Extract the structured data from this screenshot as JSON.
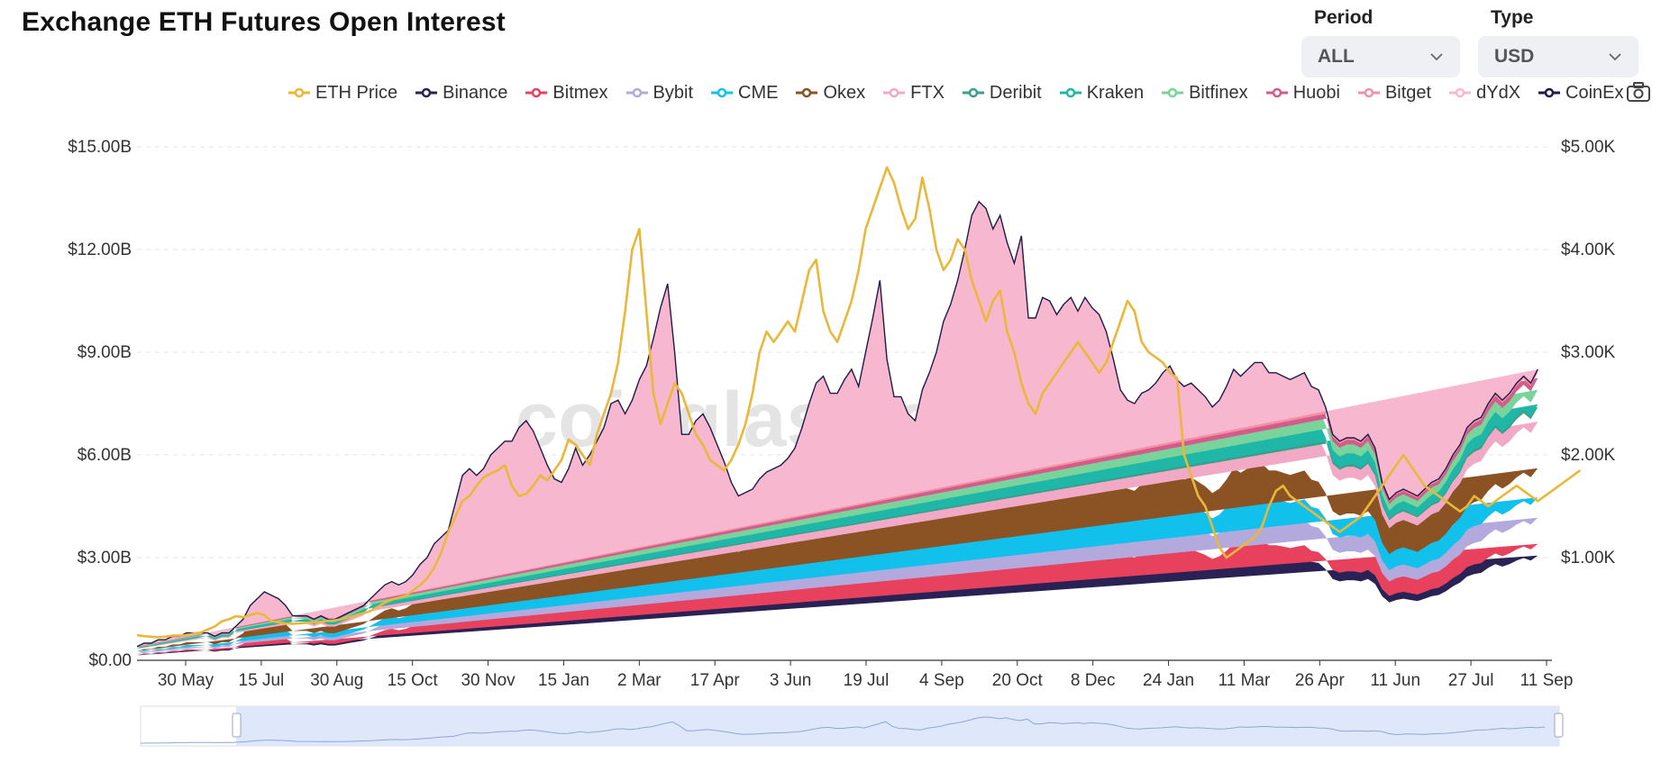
{
  "title": "Exchange ETH Futures Open Interest",
  "controls": {
    "period": {
      "label": "Period",
      "value": "ALL"
    },
    "type": {
      "label": "Type",
      "value": "USD"
    }
  },
  "watermark": "coinglass.com",
  "colors": {
    "eth_price": "#e9b83b",
    "binance": "#2a2254",
    "bitmex": "#e8415e",
    "bybit": "#b4a9dd",
    "cme": "#12c0ec",
    "okex": "#8b5324",
    "ftx": "#f1a9c5",
    "deribit": "#3c9e8c",
    "kraken": "#1fb8a8",
    "bitfinex": "#78d49a",
    "huobi": "#d45c8a",
    "bitget": "#f390a6",
    "dydx": "#f7b8cf",
    "coinex": "#1d1a4a"
  },
  "chart_data": {
    "type": "area",
    "stacked": true,
    "y_left": {
      "ticks": [
        "$0.00",
        "$3.00B",
        "$6.00B",
        "$9.00B",
        "$12.00B",
        "$15.00B"
      ],
      "range": [
        0,
        15
      ]
    },
    "y_right": {
      "ticks": [
        "$1.00K",
        "$2.00K",
        "$3.00K",
        "$4.00K",
        "$5.00K"
      ],
      "range": [
        0,
        5000
      ]
    },
    "x_ticks": [
      "30 May",
      "15 Jul",
      "30 Aug",
      "15 Oct",
      "30 Nov",
      "15 Jan",
      "2 Mar",
      "17 Apr",
      "3 Jun",
      "19 Jul",
      "4 Sep",
      "20 Oct",
      "8 Dec",
      "24 Jan",
      "11 Mar",
      "26 Apr",
      "11 Jun",
      "27 Jul",
      "11 Sep"
    ],
    "grid": true,
    "legend_position": "top-right",
    "legend": [
      "ETH Price",
      "Binance",
      "Bitmex",
      "Bybit",
      "CME",
      "Okex",
      "FTX",
      "Deribit",
      "Kraken",
      "Bitfinex",
      "Huobi",
      "Bitget",
      "dYdX",
      "CoinEx"
    ],
    "x": [
      0,
      1,
      2,
      3,
      4,
      5,
      6,
      7,
      8,
      9,
      10,
      11,
      12,
      13,
      14,
      15,
      16,
      17,
      18,
      19,
      20,
      21,
      22,
      23,
      24,
      25,
      26,
      27,
      28,
      29,
      30,
      31,
      32,
      33,
      34,
      35,
      36,
      37,
      38,
      39,
      40,
      41,
      42,
      43,
      44,
      45,
      46,
      47,
      48,
      49,
      50,
      51,
      52,
      53,
      54,
      55,
      56,
      57,
      58,
      59,
      60,
      61,
      62,
      63,
      64,
      65,
      66,
      67,
      68,
      69,
      70,
      71,
      72,
      73,
      74,
      75,
      76,
      77,
      78,
      79,
      80,
      81,
      82,
      83,
      84,
      85,
      86,
      87,
      88,
      89,
      90,
      91,
      92,
      93,
      94,
      95,
      96,
      97,
      98,
      99,
      100,
      101,
      102,
      103,
      104,
      105,
      106,
      107,
      108,
      109,
      110,
      111,
      112,
      113,
      114,
      115,
      116,
      117,
      118,
      119,
      120,
      121,
      122,
      123,
      124,
      125,
      126,
      127,
      128,
      129,
      130,
      131,
      132,
      133,
      134,
      135,
      136,
      137,
      138,
      139,
      140,
      141,
      142,
      143,
      144,
      145,
      146,
      147,
      148,
      149,
      150,
      151,
      152,
      153,
      154,
      155,
      156,
      157,
      158,
      159,
      160,
      161,
      162,
      163,
      164,
      165,
      166,
      167,
      168,
      169,
      170,
      171,
      172,
      173,
      174,
      175,
      176,
      177,
      178,
      179,
      180,
      181,
      182,
      183,
      184,
      185,
      186,
      187,
      188,
      189,
      190,
      191,
      192,
      193,
      194,
      195,
      196,
      197,
      198,
      199,
      200
    ],
    "total_oi": [
      0.4,
      0.5,
      0.5,
      0.6,
      0.6,
      0.7,
      0.7,
      0.8,
      0.8,
      0.8,
      0.8,
      0.7,
      0.8,
      0.8,
      1.0,
      1.2,
      1.6,
      1.8,
      2.0,
      1.9,
      1.8,
      1.6,
      1.3,
      1.3,
      1.3,
      1.2,
      1.3,
      1.2,
      1.2,
      1.3,
      1.4,
      1.5,
      1.6,
      1.8,
      2.0,
      2.2,
      2.3,
      2.2,
      2.3,
      2.5,
      2.8,
      3.0,
      3.4,
      3.6,
      3.8,
      4.6,
      5.4,
      5.6,
      5.4,
      5.6,
      6.0,
      6.2,
      6.4,
      6.4,
      6.8,
      7.0,
      6.7,
      6.2,
      5.7,
      5.3,
      5.2,
      5.6,
      6.2,
      5.7,
      6.0,
      6.4,
      6.8,
      7.5,
      7.6,
      7.2,
      7.6,
      8.2,
      8.6,
      9.4,
      10.3,
      11.0,
      9.0,
      6.6,
      6.6,
      7.0,
      7.2,
      6.8,
      6.3,
      5.8,
      5.2,
      4.8,
      4.9,
      5.0,
      5.3,
      5.5,
      5.6,
      5.7,
      5.9,
      6.2,
      6.8,
      7.5,
      8.1,
      8.3,
      7.8,
      7.8,
      8.2,
      8.5,
      8.0,
      9.0,
      10.0,
      11.1,
      8.8,
      7.7,
      7.7,
      7.2,
      7.0,
      7.9,
      8.4,
      9.0,
      9.9,
      10.4,
      11.1,
      12.0,
      13.0,
      13.4,
      13.2,
      12.6,
      13.0,
      12.2,
      11.6,
      12.4,
      10.0,
      10.0,
      10.6,
      10.5,
      10.1,
      10.4,
      10.6,
      10.2,
      10.6,
      10.3,
      10.1,
      9.6,
      8.8,
      7.9,
      7.6,
      7.5,
      7.8,
      7.9,
      8.1,
      8.4,
      8.6,
      8.2,
      8.0,
      8.1,
      7.9,
      7.7,
      7.4,
      7.6,
      8.0,
      8.5,
      8.3,
      8.5,
      8.7,
      8.7,
      8.4,
      8.4,
      8.3,
      8.2,
      8.3,
      8.4,
      8.0,
      7.9,
      7.4,
      6.6,
      6.4,
      6.5,
      6.5,
      6.4,
      6.6,
      6.2,
      5.2,
      4.7,
      4.9,
      5.0,
      4.9,
      4.8,
      5.0,
      5.2,
      5.3,
      5.6,
      6.0,
      6.3,
      6.8,
      7.0,
      7.1,
      7.5,
      7.8,
      7.6,
      7.8,
      8.1,
      8.3,
      8.1,
      8.5
    ],
    "shares": {
      "Binance": 0.36,
      "Bitmex": 0.04,
      "Bybit": 0.09,
      "CME": 0.07,
      "Okex": 0.1,
      "FTX": 0.16,
      "Deribit": 0.05,
      "Kraken": 0.01,
      "Bitfinex": 0.05,
      "Huobi": 0.04,
      "Bitget": 0.02,
      "dYdX": 0.01,
      "CoinEx": 0.0
    },
    "eth_price": [
      245,
      235,
      230,
      225,
      230,
      240,
      240,
      245,
      260,
      270,
      300,
      330,
      380,
      400,
      430,
      420,
      440,
      460,
      440,
      380,
      370,
      360,
      355,
      360,
      365,
      370,
      375,
      385,
      390,
      400,
      420,
      440,
      460,
      480,
      520,
      560,
      590,
      610,
      630,
      680,
      730,
      800,
      900,
      1050,
      1250,
      1400,
      1550,
      1600,
      1700,
      1780,
      1820,
      1850,
      1900,
      1700,
      1600,
      1620,
      1700,
      1800,
      1750,
      1850,
      1950,
      2150,
      2100,
      2000,
      1900,
      2200,
      2400,
      2600,
      2900,
      3400,
      4000,
      4200,
      3400,
      2600,
      2300,
      2500,
      2700,
      2600,
      2400,
      2200,
      2100,
      1950,
      1900,
      1850,
      1950,
      2100,
      2300,
      2600,
      3000,
      3200,
      3100,
      3200,
      3300,
      3200,
      3500,
      3800,
      3900,
      3400,
      3200,
      3100,
      3300,
      3500,
      3800,
      4200,
      4400,
      4600,
      4800,
      4650,
      4400,
      4200,
      4300,
      4700,
      4400,
      4000,
      3800,
      3900,
      4100,
      4000,
      3700,
      3500,
      3300,
      3500,
      3600,
      3200,
      3000,
      2700,
      2500,
      2400,
      2600,
      2700,
      2800,
      2900,
      3000,
      3100,
      3000,
      2900,
      2800,
      2900,
      3100,
      3300,
      3500,
      3400,
      3100,
      3000,
      2950,
      2900,
      2800,
      2750,
      2000,
      1800,
      1600,
      1500,
      1300,
      1100,
      1000,
      1050,
      1100,
      1150,
      1200,
      1300,
      1500,
      1650,
      1700,
      1600,
      1550,
      1500,
      1450,
      1400,
      1350,
      1300,
      1250,
      1300,
      1350,
      1400,
      1500,
      1600,
      1700,
      1800,
      1900,
      2000,
      1900,
      1800,
      1700,
      1650,
      1600,
      1550,
      1500,
      1450,
      1500,
      1600,
      1550,
      1500,
      1550,
      1600,
      1650,
      1700,
      1650,
      1600,
      1550,
      1600,
      1650,
      1700,
      1750,
      1800,
      1850
    ]
  }
}
